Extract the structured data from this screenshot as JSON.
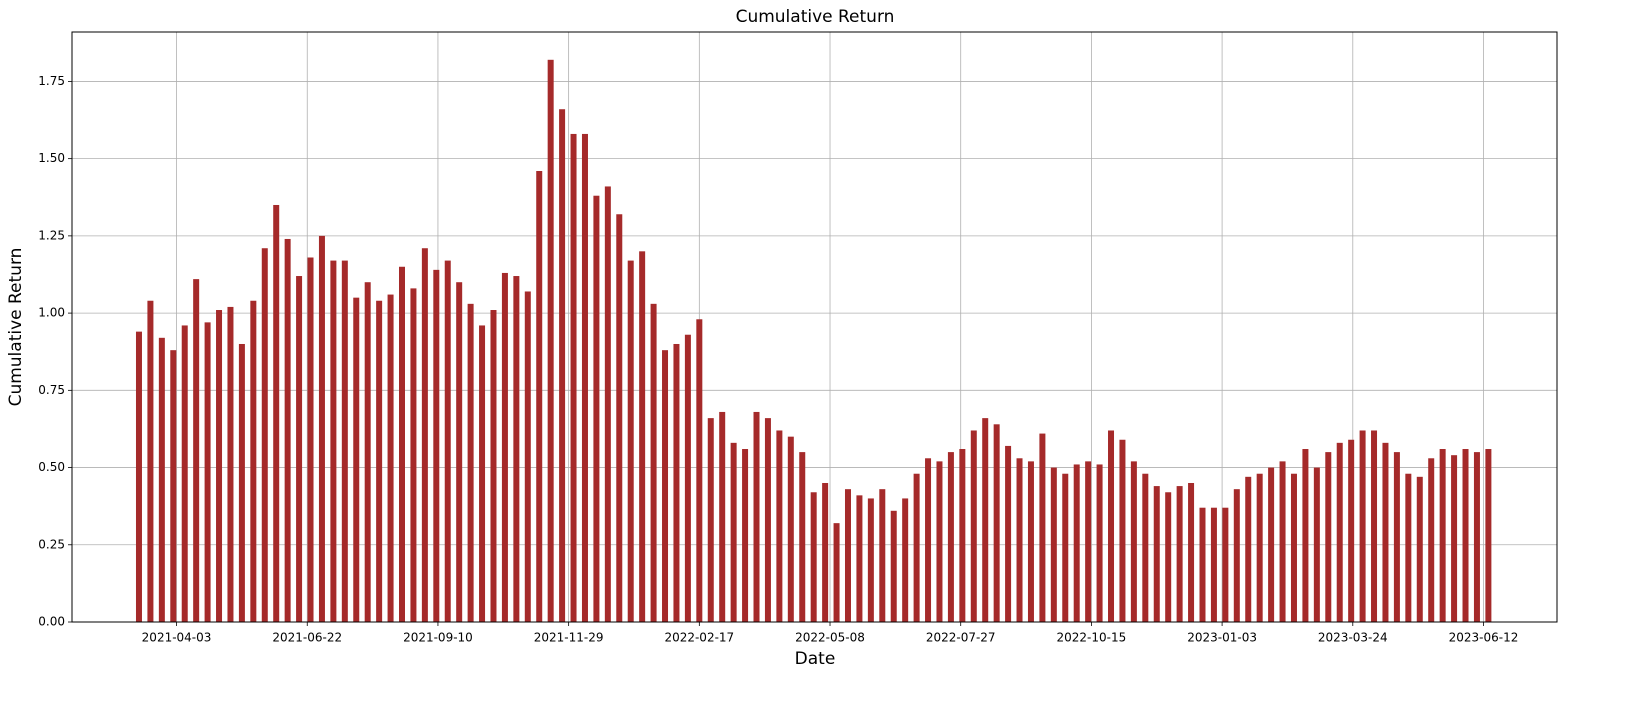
{
  "chart_data": {
    "type": "bar",
    "title": "Cumulative Return",
    "xlabel": "Date",
    "ylabel": "Cumulative Return",
    "color": "#a52a2a",
    "grid": true,
    "xlim": [
      "2021-01-29",
      "2023-07-27"
    ],
    "xticks": [
      "2021-04-03",
      "2021-06-22",
      "2021-09-10",
      "2021-11-29",
      "2022-02-17",
      "2022-05-08",
      "2022-07-27",
      "2022-10-15",
      "2023-01-03",
      "2023-03-24",
      "2023-06-12"
    ],
    "ylim": [
      0,
      1.91
    ],
    "yticks": [
      {
        "value": 0,
        "label": "0.00"
      },
      {
        "value": 0.25,
        "label": "0.25"
      },
      {
        "value": 0.5,
        "label": "0.50"
      },
      {
        "value": 0.75,
        "label": "0.75"
      },
      {
        "value": 1,
        "label": "1.00"
      },
      {
        "value": 1.25,
        "label": "1.25"
      },
      {
        "value": 1.5,
        "label": "1.50"
      },
      {
        "value": 1.75,
        "label": "1.75"
      }
    ],
    "x": [
      "2021-03-11",
      "2021-03-18",
      "2021-03-25",
      "2021-04-01",
      "2021-04-08",
      "2021-04-15",
      "2021-04-22",
      "2021-04-29",
      "2021-05-06",
      "2021-05-13",
      "2021-05-20",
      "2021-05-27",
      "2021-06-03",
      "2021-06-10",
      "2021-06-17",
      "2021-06-24",
      "2021-07-01",
      "2021-07-08",
      "2021-07-15",
      "2021-07-22",
      "2021-07-29",
      "2021-08-05",
      "2021-08-12",
      "2021-08-19",
      "2021-08-26",
      "2021-09-02",
      "2021-09-09",
      "2021-09-16",
      "2021-09-23",
      "2021-09-30",
      "2021-10-07",
      "2021-10-14",
      "2021-10-21",
      "2021-10-28",
      "2021-11-04",
      "2021-11-11",
      "2021-11-18",
      "2021-11-25",
      "2021-12-02",
      "2021-12-09",
      "2021-12-16",
      "2021-12-23",
      "2021-12-30",
      "2022-01-06",
      "2022-01-13",
      "2022-01-20",
      "2022-01-27",
      "2022-02-03",
      "2022-02-10",
      "2022-02-17",
      "2022-02-24",
      "2022-03-03",
      "2022-03-10",
      "2022-03-17",
      "2022-03-24",
      "2022-03-31",
      "2022-04-07",
      "2022-04-14",
      "2022-04-21",
      "2022-04-28",
      "2022-05-05",
      "2022-05-12",
      "2022-05-19",
      "2022-05-26",
      "2022-06-02",
      "2022-06-09",
      "2022-06-16",
      "2022-06-23",
      "2022-06-30",
      "2022-07-07",
      "2022-07-14",
      "2022-07-21",
      "2022-07-28",
      "2022-08-04",
      "2022-08-11",
      "2022-08-18",
      "2022-08-25",
      "2022-09-01",
      "2022-09-08",
      "2022-09-15",
      "2022-09-22",
      "2022-09-29",
      "2022-10-06",
      "2022-10-13",
      "2022-10-20",
      "2022-10-27",
      "2022-11-03",
      "2022-11-10",
      "2022-11-17",
      "2022-11-24",
      "2022-12-01",
      "2022-12-08",
      "2022-12-15",
      "2022-12-22",
      "2022-12-29",
      "2023-01-05",
      "2023-01-12",
      "2023-01-19",
      "2023-01-26",
      "2023-02-02",
      "2023-02-09",
      "2023-02-16",
      "2023-02-23",
      "2023-03-02",
      "2023-03-09",
      "2023-03-16",
      "2023-03-23",
      "2023-03-30",
      "2023-04-06",
      "2023-04-13",
      "2023-04-20",
      "2023-04-27",
      "2023-05-04",
      "2023-05-11",
      "2023-05-18",
      "2023-05-25",
      "2023-06-01",
      "2023-06-08",
      "2023-06-15"
    ],
    "values": [
      0.94,
      1.04,
      0.92,
      0.88,
      0.96,
      1.11,
      0.97,
      1.01,
      1.02,
      0.9,
      1.04,
      1.21,
      1.35,
      1.24,
      1.12,
      1.18,
      1.25,
      1.17,
      1.17,
      1.05,
      1.1,
      1.04,
      1.06,
      1.15,
      1.08,
      1.21,
      1.14,
      1.17,
      1.1,
      1.03,
      0.96,
      1.01,
      1.13,
      1.12,
      1.07,
      1.46,
      1.82,
      1.66,
      1.58,
      1.58,
      1.38,
      1.41,
      1.32,
      1.17,
      1.2,
      1.03,
      0.88,
      0.9,
      0.93,
      0.98,
      0.66,
      0.68,
      0.58,
      0.56,
      0.68,
      0.66,
      0.62,
      0.6,
      0.55,
      0.42,
      0.45,
      0.32,
      0.43,
      0.41,
      0.4,
      0.43,
      0.36,
      0.4,
      0.48,
      0.53,
      0.52,
      0.55,
      0.56,
      0.62,
      0.66,
      0.64,
      0.57,
      0.53,
      0.52,
      0.61,
      0.5,
      0.48,
      0.51,
      0.52,
      0.51,
      0.62,
      0.59,
      0.52,
      0.48,
      0.44,
      0.42,
      0.44,
      0.45,
      0.37,
      0.37,
      0.37,
      0.43,
      0.47,
      0.48,
      0.5,
      0.52,
      0.48,
      0.56,
      0.5,
      0.55,
      0.58,
      0.59,
      0.62,
      0.62,
      0.58,
      0.55,
      0.48,
      0.47,
      0.53,
      0.56,
      0.54,
      0.56,
      0.55,
      0.56
    ]
  }
}
